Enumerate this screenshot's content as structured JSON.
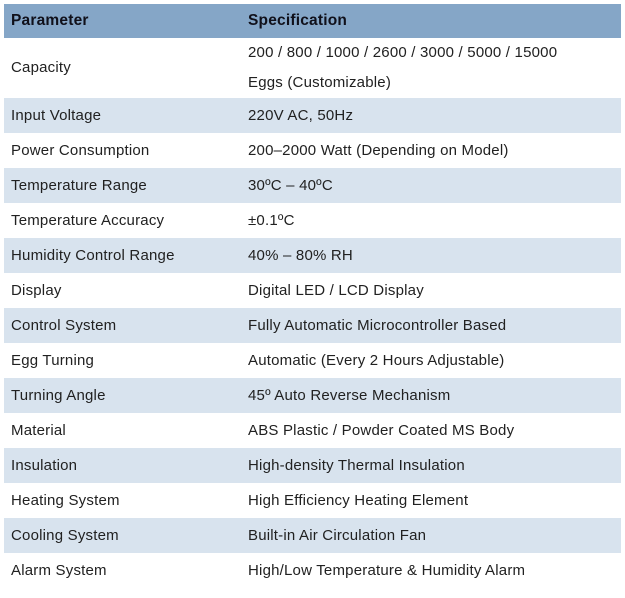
{
  "table": {
    "headers": {
      "parameter": "Parameter",
      "specification": "Specification"
    },
    "rows": [
      {
        "param": "Capacity",
        "spec": "200 / 800 / 1000 / 2600 / 3000 / 5000 / 15000\nEggs (Customizable)"
      },
      {
        "param": "Input Voltage",
        "spec": "220V AC, 50Hz"
      },
      {
        "param": "Power Consumption",
        "spec": "200–2000 Watt (Depending on Model)"
      },
      {
        "param": "Temperature Range",
        "spec": "30ºC – 40ºC"
      },
      {
        "param": "Temperature Accuracy",
        "spec": "±0.1ºC"
      },
      {
        "param": "Humidity Control Range",
        "spec": "40% – 80% RH"
      },
      {
        "param": "Display",
        "spec": "Digital LED / LCD Display"
      },
      {
        "param": "Control System",
        "spec": "Fully Automatic Microcontroller Based"
      },
      {
        "param": "Egg Turning",
        "spec": "Automatic (Every 2 Hours Adjustable)"
      },
      {
        "param": "Turning Angle",
        "spec": "45º Auto Reverse Mechanism"
      },
      {
        "param": "Material",
        "spec": "ABS Plastic / Powder Coated MS Body"
      },
      {
        "param": "Insulation",
        "spec": "High-density Thermal Insulation"
      },
      {
        "param": "Heating System",
        "spec": "High Efficiency Heating Element"
      },
      {
        "param": "Cooling System",
        "spec": "Built-in Air Circulation Fan"
      },
      {
        "param": "Alarm System",
        "spec": "High/Low Temperature & Humidity Alarm"
      }
    ]
  },
  "colors": {
    "header_bg": "#85a6c7",
    "row_alt_bg": "#d8e3ee",
    "row_bg": "#ffffff",
    "header_text": "#10101a",
    "body_text": "#212121"
  }
}
